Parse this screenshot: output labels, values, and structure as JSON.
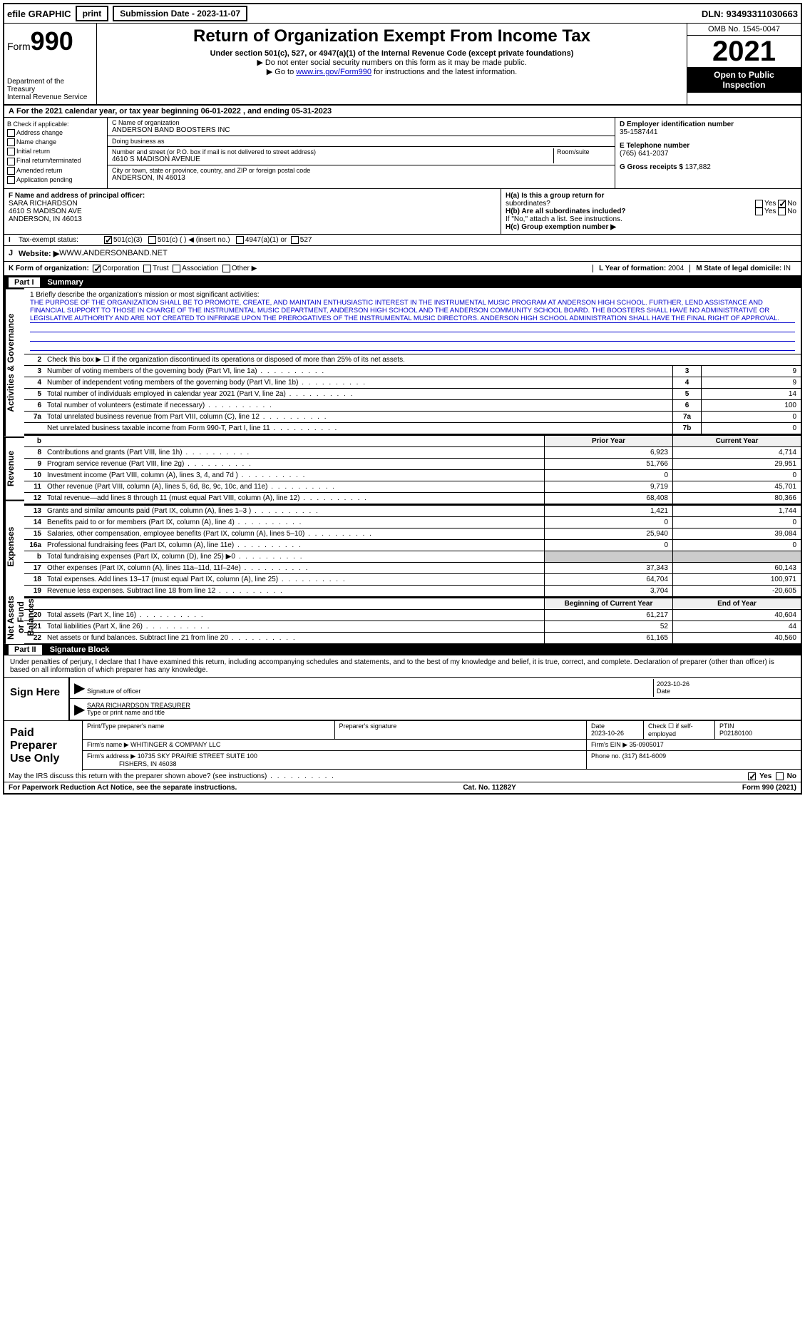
{
  "topbar": {
    "efile": "efile GRAPHIC",
    "print": "print",
    "submission": "Submission Date - 2023-11-07",
    "dln": "DLN: 93493311030663"
  },
  "header": {
    "form": "Form",
    "formnum": "990",
    "dept": "Department of the Treasury",
    "irs": "Internal Revenue Service",
    "title": "Return of Organization Exempt From Income Tax",
    "sub1": "Under section 501(c), 527, or 4947(a)(1) of the Internal Revenue Code (except private foundations)",
    "sub2": "▶ Do not enter social security numbers on this form as it may be made public.",
    "sub3": "▶ Go to ",
    "link": "www.irs.gov/Form990",
    "sub3b": " for instructions and the latest information.",
    "omb": "OMB No. 1545-0047",
    "year": "2021",
    "open": "Open to Public",
    "inspection": "Inspection"
  },
  "period": {
    "label_a": "A",
    "text": " For the 2021 calendar year, or tax year beginning ",
    "begin": "06-01-2022",
    "mid": " , and ending ",
    "end": "05-31-2023"
  },
  "section_b": {
    "label": "B Check if applicable:",
    "items": [
      "Address change",
      "Name change",
      "Initial return",
      "Final return/terminated",
      "Amended return",
      "Application pending"
    ]
  },
  "section_c": {
    "name_label": "C Name of organization",
    "name": "ANDERSON BAND BOOSTERS INC",
    "dba_label": "Doing business as",
    "dba": "",
    "addr_label": "Number and street (or P.O. box if mail is not delivered to street address)",
    "room_label": "Room/suite",
    "addr": "4610 S MADISON AVENUE",
    "city_label": "City or town, state or province, country, and ZIP or foreign postal code",
    "city": "ANDERSON, IN  46013"
  },
  "section_d": {
    "ein_label": "D Employer identification number",
    "ein": "35-1587441",
    "phone_label": "E Telephone number",
    "phone": "(765) 641-2037",
    "gross_label": "G Gross receipts $",
    "gross": "137,882"
  },
  "section_f": {
    "label": "F  Name and address of principal officer:",
    "name": "SARA RICHARDSON",
    "addr1": "4610 S MADISON AVE",
    "addr2": "ANDERSON, IN  46013"
  },
  "section_h": {
    "ha": "H(a)  Is this a group return for",
    "ha2": "subordinates?",
    "hb": "H(b)  Are all subordinates included?",
    "hb2": "If \"No,\" attach a list. See instructions.",
    "hc": "H(c)  Group exemption number ▶",
    "yes": "Yes",
    "no": "No"
  },
  "section_i": {
    "label": "I",
    "tax": "Tax-exempt status:",
    "opts": [
      "501(c)(3)",
      "501(c) (  ) ◀ (insert no.)",
      "4947(a)(1) or",
      "527"
    ]
  },
  "section_j": {
    "label": "J",
    "web": "Website: ▶",
    "url": " WWW.ANDERSONBAND.NET"
  },
  "section_k": {
    "label": "K Form of organization:",
    "opts": [
      "Corporation",
      "Trust",
      "Association",
      "Other ▶"
    ],
    "l_label": "L Year of formation:",
    "l_val": "2004",
    "m_label": "M State of legal domicile:",
    "m_val": "IN"
  },
  "part1": {
    "header": "Part I",
    "title": "Summary",
    "vert_labels": [
      "Activities & Governance",
      "Revenue",
      "Expenses",
      "Net Assets or Fund Balances"
    ],
    "mission_label": "1   Briefly describe the organization's mission or most significant activities:",
    "mission": "THE PURPOSE OF THE ORGANIZATION SHALL BE TO PROMOTE, CREATE, AND MAINTAIN ENTHUSIASTIC INTEREST IN THE INSTRUMENTAL MUSIC PROGRAM AT ANDERSON HIGH SCHOOL. FURTHER, LEND ASSISTANCE AND FINANCIAL SUPPORT TO THOSE IN CHARGE OF THE INSTRUMENTAL MUSIC DEPARTMENT, ANDERSON HIGH SCHOOL AND THE ANDERSON COMMUNITY SCHOOL BOARD. THE BOOSTERS SHALL HAVE NO ADMINISTRATIVE OR LEGISLATIVE AUTHORITY AND ARE NOT CREATED TO INFRINGE UPON THE PREROGATIVES OF THE INSTRUMENTAL MUSIC DIRECTORS. ANDERSON HIGH SCHOOL ADMINISTRATION SHALL HAVE THE FINAL RIGHT OF APPROVAL.",
    "line2": "Check this box ▶ ☐ if the organization discontinued its operations or disposed of more than 25% of its net assets.",
    "rows_gov": [
      {
        "n": "3",
        "d": "Number of voting members of the governing body (Part VI, line 1a)",
        "b": "3",
        "v": "9"
      },
      {
        "n": "4",
        "d": "Number of independent voting members of the governing body (Part VI, line 1b)",
        "b": "4",
        "v": "9"
      },
      {
        "n": "5",
        "d": "Total number of individuals employed in calendar year 2021 (Part V, line 2a)",
        "b": "5",
        "v": "14"
      },
      {
        "n": "6",
        "d": "Total number of volunteers (estimate if necessary)",
        "b": "6",
        "v": "100"
      },
      {
        "n": "7a",
        "d": "Total unrelated business revenue from Part VIII, column (C), line 12",
        "b": "7a",
        "v": "0"
      },
      {
        "n": "",
        "d": "Net unrelated business taxable income from Form 990-T, Part I, line 11",
        "b": "7b",
        "v": "0"
      }
    ],
    "col_hdr": {
      "b": "b",
      "prior": "Prior Year",
      "current": "Current Year"
    },
    "rows_rev": [
      {
        "n": "8",
        "d": "Contributions and grants (Part VIII, line 1h)",
        "p": "6,923",
        "c": "4,714"
      },
      {
        "n": "9",
        "d": "Program service revenue (Part VIII, line 2g)",
        "p": "51,766",
        "c": "29,951"
      },
      {
        "n": "10",
        "d": "Investment income (Part VIII, column (A), lines 3, 4, and 7d )",
        "p": "0",
        "c": "0"
      },
      {
        "n": "11",
        "d": "Other revenue (Part VIII, column (A), lines 5, 6d, 8c, 9c, 10c, and 11e)",
        "p": "9,719",
        "c": "45,701"
      },
      {
        "n": "12",
        "d": "Total revenue—add lines 8 through 11 (must equal Part VIII, column (A), line 12)",
        "p": "68,408",
        "c": "80,366"
      }
    ],
    "rows_exp": [
      {
        "n": "13",
        "d": "Grants and similar amounts paid (Part IX, column (A), lines 1–3 )",
        "p": "1,421",
        "c": "1,744"
      },
      {
        "n": "14",
        "d": "Benefits paid to or for members (Part IX, column (A), line 4)",
        "p": "0",
        "c": "0"
      },
      {
        "n": "15",
        "d": "Salaries, other compensation, employee benefits (Part IX, column (A), lines 5–10)",
        "p": "25,940",
        "c": "39,084"
      },
      {
        "n": "16a",
        "d": "Professional fundraising fees (Part IX, column (A), line 11e)",
        "p": "0",
        "c": "0"
      },
      {
        "n": "b",
        "d": "Total fundraising expenses (Part IX, column (D), line 25) ▶0",
        "p": "",
        "c": "",
        "shaded": true
      },
      {
        "n": "17",
        "d": "Other expenses (Part IX, column (A), lines 11a–11d, 11f–24e)",
        "p": "37,343",
        "c": "60,143"
      },
      {
        "n": "18",
        "d": "Total expenses. Add lines 13–17 (must equal Part IX, column (A), line 25)",
        "p": "64,704",
        "c": "100,971"
      },
      {
        "n": "19",
        "d": "Revenue less expenses. Subtract line 18 from line 12",
        "p": "3,704",
        "c": "-20,605"
      }
    ],
    "col_hdr2": {
      "prior": "Beginning of Current Year",
      "current": "End of Year"
    },
    "rows_net": [
      {
        "n": "20",
        "d": "Total assets (Part X, line 16)",
        "p": "61,217",
        "c": "40,604"
      },
      {
        "n": "21",
        "d": "Total liabilities (Part X, line 26)",
        "p": "52",
        "c": "44"
      },
      {
        "n": "22",
        "d": "Net assets or fund balances. Subtract line 21 from line 20",
        "p": "61,165",
        "c": "40,560"
      }
    ]
  },
  "part2": {
    "header": "Part II",
    "title": "Signature Block",
    "intro": "Under penalties of perjury, I declare that I have examined this return, including accompanying schedules and statements, and to the best of my knowledge and belief, it is true, correct, and complete. Declaration of preparer (other than officer) is based on all information of which preparer has any knowledge.",
    "sign": "Sign Here",
    "sig_officer": "Signature of officer",
    "sig_date": "2023-10-26",
    "date_lbl": "Date",
    "officer_name": "SARA RICHARDSON  TREASURER",
    "type_lbl": "Type or print name and title",
    "paid": "Paid Preparer Use Only",
    "prep_name_lbl": "Print/Type preparer's name",
    "prep_sig_lbl": "Preparer's signature",
    "prep_date_lbl": "Date",
    "prep_date": "2023-10-26",
    "check_lbl": "Check ☐ if self-employed",
    "ptin_lbl": "PTIN",
    "ptin": "P02180100",
    "firm_name_lbl": "Firm's name    ▶",
    "firm_name": "WHITINGER & COMPANY LLC",
    "firm_ein_lbl": "Firm's EIN ▶",
    "firm_ein": "35-0905017",
    "firm_addr_lbl": "Firm's address ▶",
    "firm_addr1": "10735 SKY PRAIRIE STREET SUITE 100",
    "firm_addr2": "FISHERS, IN  46038",
    "phone_lbl": "Phone no.",
    "phone": "(317) 841-6009"
  },
  "footer": {
    "discuss": "May the IRS discuss this return with the preparer shown above? (see instructions)",
    "yes": "Yes",
    "no": "No",
    "paperwork": "For Paperwork Reduction Act Notice, see the separate instructions.",
    "cat": "Cat. No. 11282Y",
    "form": "Form 990 (2021)"
  }
}
